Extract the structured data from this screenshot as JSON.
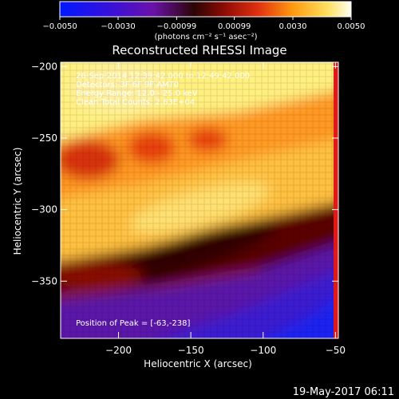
{
  "chart_data": {
    "type": "heatmap",
    "title": "Reconstructed RHESSI Image",
    "xlabel": "Heliocentric X (arcsec)",
    "ylabel": "Heliocentric Y (arcsec)",
    "xlim": [
      -240,
      -48
    ],
    "ylim": [
      -390,
      -197
    ],
    "x_ticks": [
      -200,
      -150,
      -100,
      -50
    ],
    "x_tick_labels": [
      "−200",
      "−150",
      "−100",
      "−50"
    ],
    "y_ticks": [
      -200,
      -250,
      -300,
      -350
    ],
    "y_tick_labels": [
      "−200",
      "−250",
      "−300",
      "−350"
    ],
    "colorbar": {
      "range": [
        -0.005,
        0.005
      ],
      "ticks": [
        -0.005,
        -0.003,
        -0.00099,
        0.00099,
        0.003,
        0.005
      ],
      "tick_labels": [
        "−0.0050",
        "−0.0030",
        "−0.00099",
        "0.00099",
        "0.0030",
        "0.0050"
      ],
      "unit_label": "(photons cm⁻² s⁻¹ asec⁻²)"
    },
    "annotations": [
      "26-Sep-2014 12:39:42.000 to 12:49:42.000",
      "Detectors: 3F 6F 9F AMT0",
      "Energy Range: 12.0 - 25.0 keV",
      "Clean     Total Counts: 2.63E+04"
    ],
    "peak_label": "Position of Peak = [-63,-238]",
    "peak": {
      "x": -63,
      "y": -238
    },
    "footer_date": "19-May-2017 06:11"
  }
}
